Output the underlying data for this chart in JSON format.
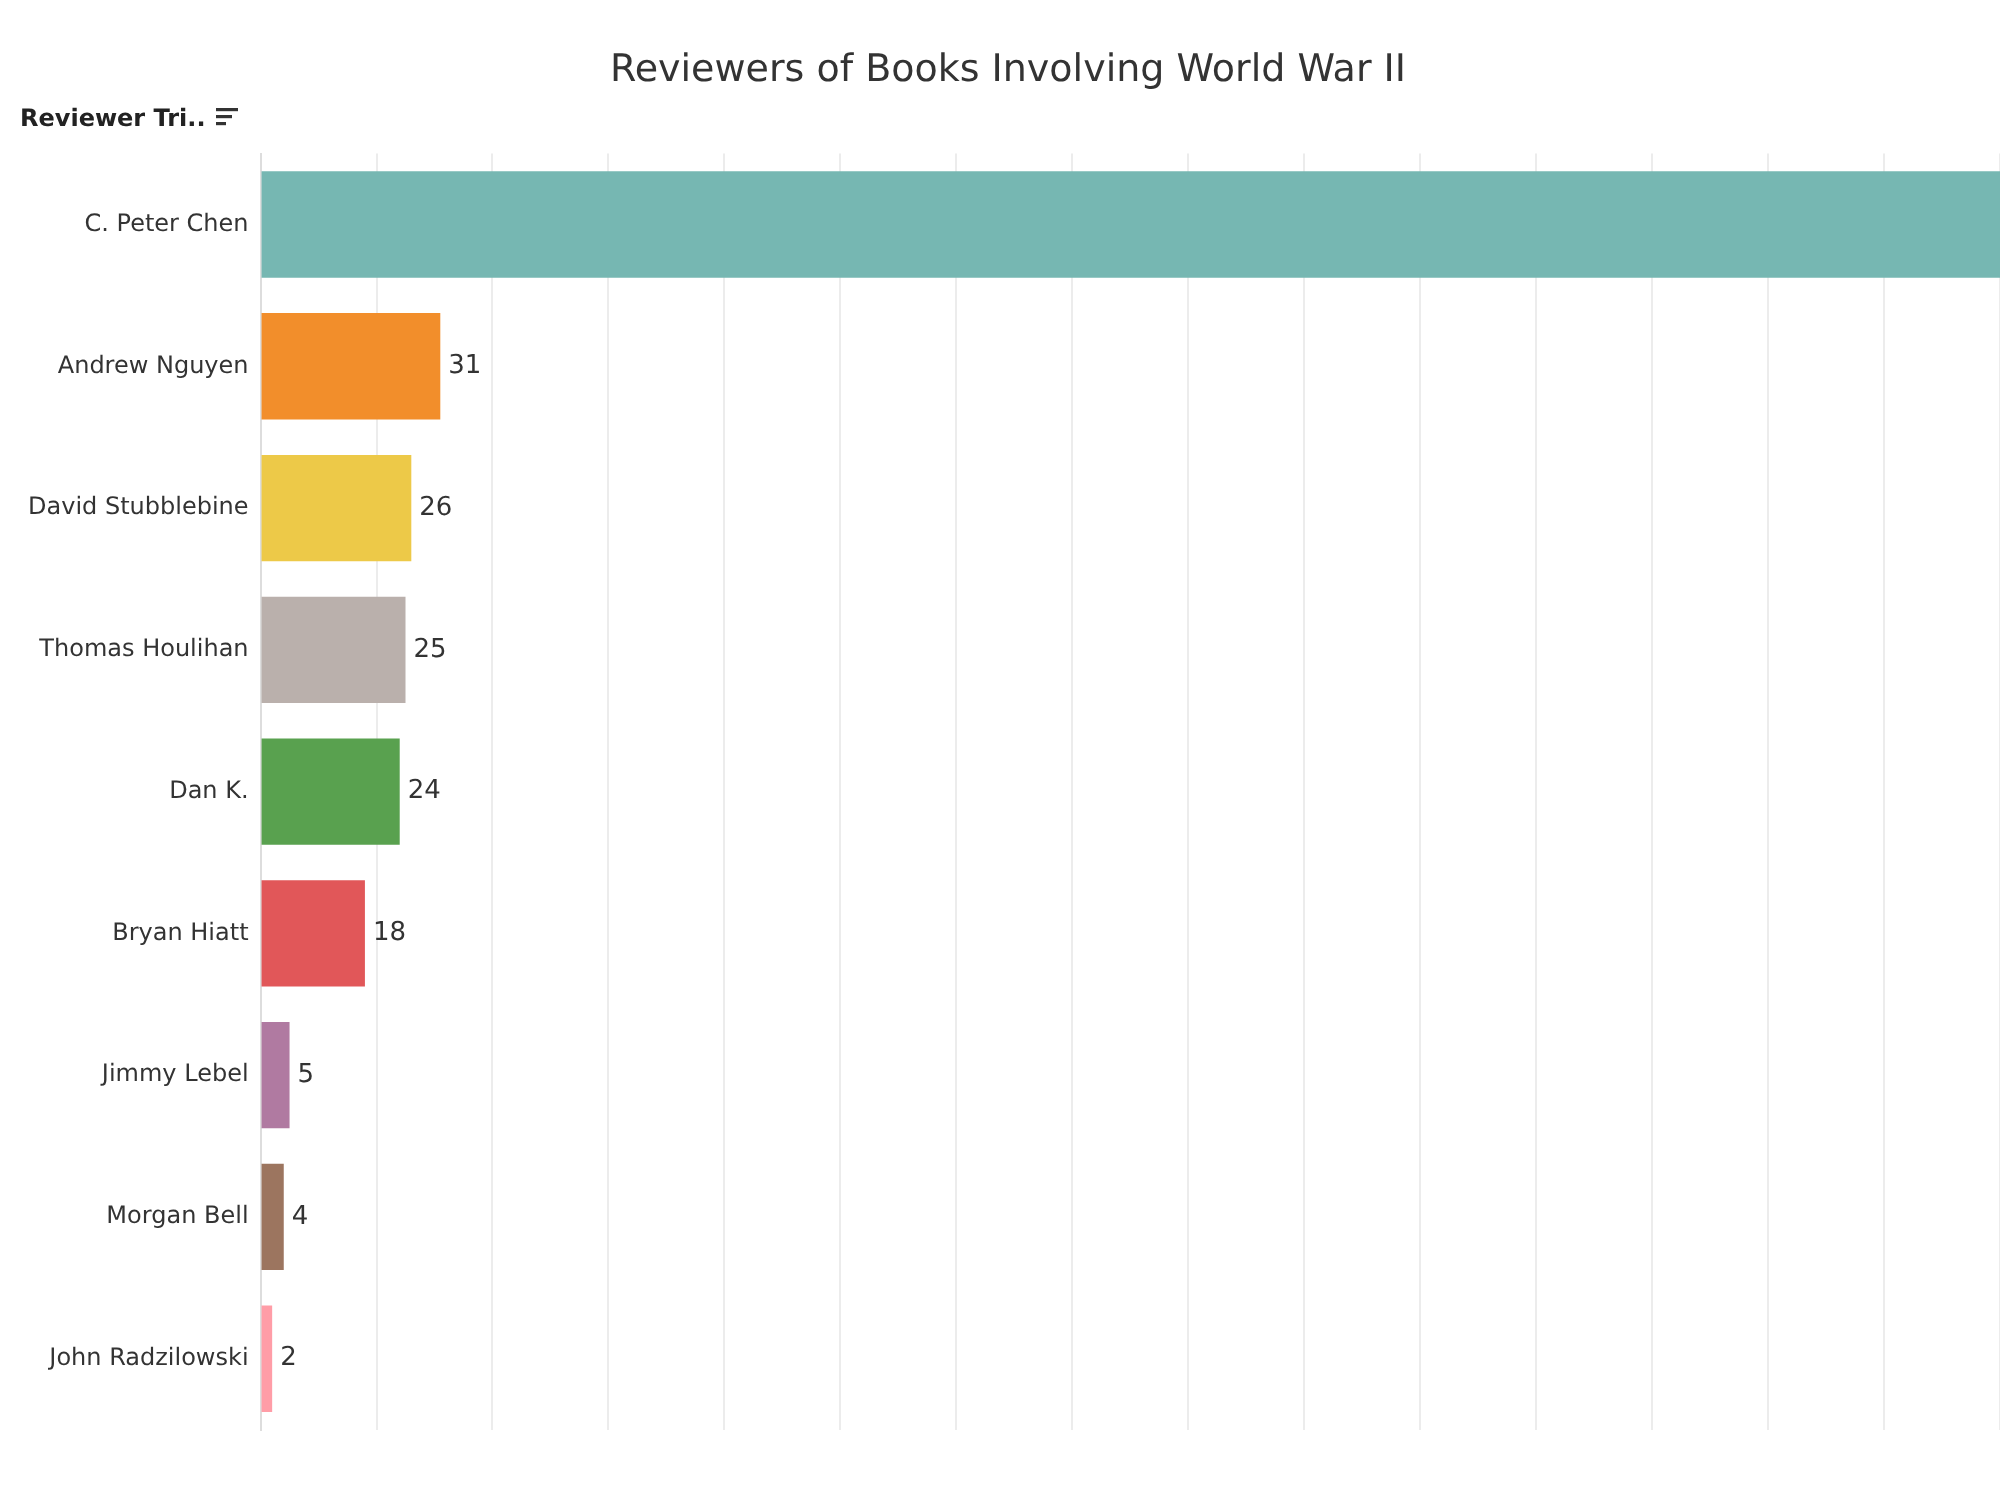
{
  "chart_data": {
    "type": "bar",
    "orientation": "horizontal",
    "title": "Reviewers of Books Involving World War II",
    "ylabel": "Reviewer Tri..",
    "categories": [
      "C. Peter Chen",
      "Andrew Nguyen",
      "David Stubblebine",
      "Thomas Houlihan",
      "Dan K.",
      "Bryan Hiatt",
      "Jimmy Lebel",
      "Morgan Bell",
      "John Radzilowski"
    ],
    "values": [
      300,
      31,
      26,
      25,
      24,
      18,
      5,
      4,
      2
    ],
    "colors": [
      "#76b7b2",
      "#f28e2b",
      "#edc948",
      "#bab0ac",
      "#59a14f",
      "#e15759",
      "#b07aa1",
      "#9c755f",
      "#ff9da7"
    ],
    "value_labels": [
      null,
      "31",
      "26",
      "25",
      "24",
      "18",
      "5",
      "4",
      "2"
    ],
    "xlim": [
      0,
      300
    ],
    "xticks": [
      {
        "value": 0,
        "label": null
      },
      {
        "value": 20,
        "label": null
      },
      {
        "value": 40,
        "label": null
      },
      {
        "value": 60,
        "label": null
      },
      {
        "value": 80,
        "label": null
      },
      {
        "value": 100,
        "label": null
      },
      {
        "value": 120,
        "label": null
      },
      {
        "value": 140,
        "label": null
      },
      {
        "value": 160,
        "label": null
      },
      {
        "value": 180,
        "label": null
      },
      {
        "value": 200,
        "label": null
      },
      {
        "value": 220,
        "label": null
      },
      {
        "value": 240,
        "label": null
      },
      {
        "value": 260,
        "label": null
      },
      {
        "value": 280,
        "label": null
      },
      {
        "value": 300,
        "label": null
      }
    ],
    "grid": "x",
    "tick_labels": "y",
    "legend": false
  }
}
